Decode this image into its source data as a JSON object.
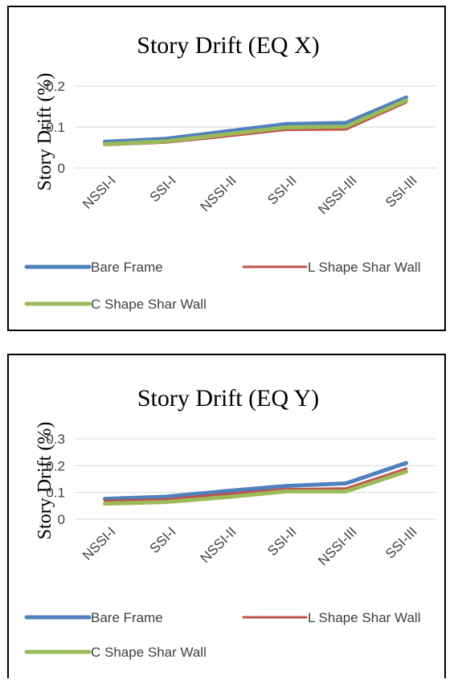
{
  "chart_data": [
    {
      "type": "line",
      "title": "Story Drift (EQ X)",
      "xlabel": "",
      "ylabel": "Story Drift (%)",
      "categories": [
        "NSSI-I",
        "SSI-I",
        "NSSI-II",
        "SSI-II",
        "NSSI-III",
        "SSI-III"
      ],
      "y_ticks": [
        "0",
        "0.1",
        "0.2"
      ],
      "ylim": [
        0,
        0.2
      ],
      "grid": true,
      "legend": "bottom",
      "series": [
        {
          "name": "Bare Frame",
          "color": "#4F81BD",
          "values": [
            0.064,
            0.071,
            0.089,
            0.107,
            0.11,
            0.172
          ]
        },
        {
          "name": "L Shape Shar Wall",
          "color": "#C0504D",
          "values": [
            0.056,
            0.062,
            0.077,
            0.093,
            0.094,
            0.16
          ]
        },
        {
          "name": "C Shape Shar Wall",
          "color": "#9BBB59",
          "values": [
            0.058,
            0.065,
            0.082,
            0.099,
            0.101,
            0.165
          ]
        }
      ]
    },
    {
      "type": "line",
      "title": "Story Drift (EQ Y)",
      "xlabel": "",
      "ylabel": "Story Drift (%)",
      "categories": [
        "NSSI-I",
        "SSI-I",
        "NSSI-II",
        "SSI-II",
        "NSSI-III",
        "SSI-III"
      ],
      "y_ticks": [
        "0",
        "0.1",
        "0.2",
        "0.3"
      ],
      "ylim": [
        0,
        0.3
      ],
      "grid": true,
      "legend": "bottom",
      "series": [
        {
          "name": "Bare Frame",
          "color": "#4F81BD",
          "values": [
            0.076,
            0.084,
            0.105,
            0.124,
            0.134,
            0.21
          ]
        },
        {
          "name": "L Shape Shar Wall",
          "color": "#C0504D",
          "values": [
            0.068,
            0.074,
            0.094,
            0.112,
            0.115,
            0.189
          ]
        },
        {
          "name": "C Shape Shar Wall",
          "color": "#9BBB59",
          "values": [
            0.058,
            0.064,
            0.082,
            0.104,
            0.104,
            0.178
          ]
        }
      ]
    }
  ]
}
